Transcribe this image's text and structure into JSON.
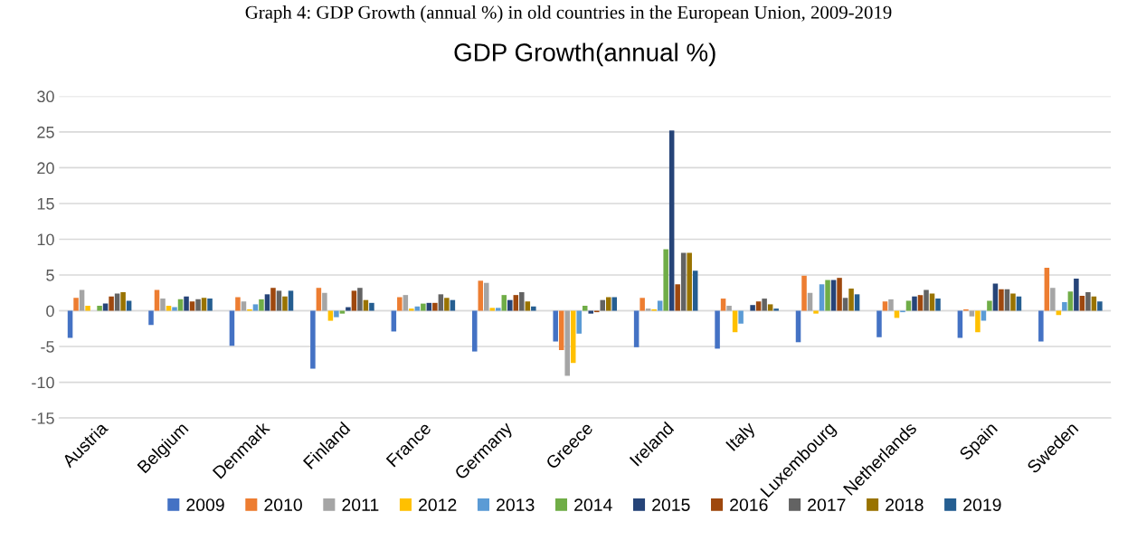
{
  "chart_data": {
    "type": "bar",
    "title": "GDP Growth(annual %)",
    "annotations": [
      "Graph 4: GDP Growth (annual %) in old countries in the European Union, 2009-2019"
    ],
    "categories": [
      "Austria",
      "Belgium",
      "Denmark",
      "Finland",
      "France",
      "Germany",
      "Greece",
      "Ireland",
      "Italy",
      "Luxembourg",
      "Netherlands",
      "Spain",
      "Sweden"
    ],
    "series": [
      {
        "name": "2009",
        "color": "#4472c4",
        "values": [
          -3.8,
          -2.0,
          -4.9,
          -8.1,
          -2.9,
          -5.7,
          -4.3,
          -5.1,
          -5.3,
          -4.4,
          -3.7,
          -3.8,
          -4.3
        ]
      },
      {
        "name": "2010",
        "color": "#ed7d31",
        "values": [
          1.8,
          2.9,
          1.9,
          3.2,
          1.9,
          4.2,
          -5.5,
          1.8,
          1.7,
          4.9,
          1.3,
          0.2,
          6.0
        ]
      },
      {
        "name": "2011",
        "color": "#a5a5a5",
        "values": [
          2.9,
          1.7,
          1.3,
          2.5,
          2.2,
          3.9,
          -9.1,
          0.3,
          0.7,
          2.5,
          1.6,
          -0.8,
          3.2
        ]
      },
      {
        "name": "2012",
        "color": "#ffc000",
        "values": [
          0.7,
          0.7,
          0.2,
          -1.4,
          0.3,
          0.4,
          -7.3,
          0.2,
          -3.0,
          -0.4,
          -1.0,
          -3.0,
          -0.6
        ]
      },
      {
        "name": "2013",
        "color": "#5b9bd5",
        "values": [
          0.0,
          0.5,
          0.9,
          -0.9,
          0.6,
          0.4,
          -3.2,
          1.4,
          -1.8,
          3.7,
          -0.2,
          -1.4,
          1.2
        ]
      },
      {
        "name": "2014",
        "color": "#70ad47",
        "values": [
          0.7,
          1.6,
          1.6,
          -0.4,
          1.0,
          2.2,
          0.7,
          8.6,
          0.0,
          4.3,
          1.4,
          1.4,
          2.7
        ]
      },
      {
        "name": "2015",
        "color": "#264478",
        "values": [
          1.0,
          2.0,
          2.3,
          0.5,
          1.1,
          1.5,
          -0.4,
          25.2,
          0.8,
          4.3,
          2.0,
          3.8,
          4.5
        ]
      },
      {
        "name": "2016",
        "color": "#9e480e",
        "values": [
          2.0,
          1.3,
          3.2,
          2.8,
          1.1,
          2.2,
          -0.2,
          3.7,
          1.3,
          4.6,
          2.2,
          3.0,
          2.1
        ]
      },
      {
        "name": "2017",
        "color": "#636363",
        "values": [
          2.4,
          1.6,
          2.8,
          3.2,
          2.3,
          2.6,
          1.5,
          8.1,
          1.7,
          1.8,
          2.9,
          3.0,
          2.6
        ]
      },
      {
        "name": "2018",
        "color": "#997300",
        "values": [
          2.6,
          1.8,
          2.0,
          1.5,
          1.8,
          1.3,
          1.9,
          8.1,
          0.9,
          3.1,
          2.4,
          2.4,
          2.0
        ]
      },
      {
        "name": "2019",
        "color": "#255e91",
        "values": [
          1.4,
          1.7,
          2.8,
          1.1,
          1.5,
          0.6,
          1.9,
          5.6,
          0.3,
          2.3,
          1.7,
          2.0,
          1.3
        ]
      }
    ],
    "ylim": [
      -15,
      30
    ],
    "yticks": [
      -15,
      -10,
      -5,
      0,
      5,
      10,
      15,
      20,
      25,
      30
    ],
    "grid": "y",
    "legend": "bottom"
  }
}
